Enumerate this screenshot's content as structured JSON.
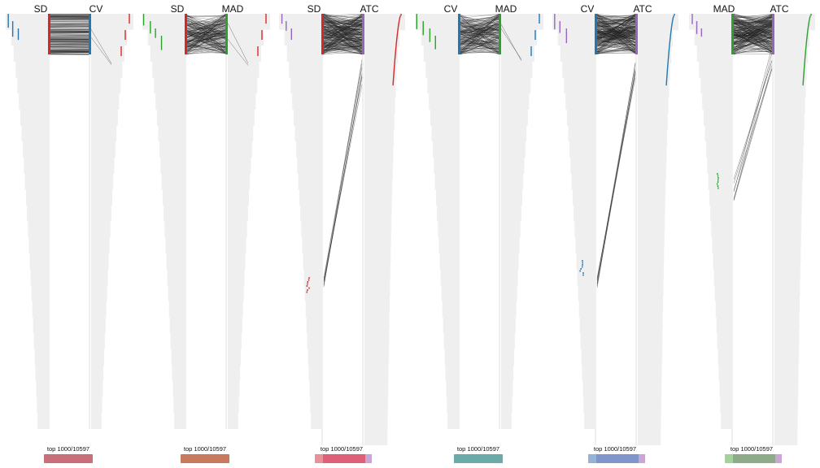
{
  "chart_data": {
    "type": "parallel-rank-comparison",
    "total_genes": 10597,
    "top_n": 1000,
    "footer_label": "top 1000/10597",
    "method_colors": {
      "SD": "#d62728",
      "CV": "#1f77b4",
      "MAD": "#2ca02c",
      "ATC": "#9467bd"
    },
    "background_color": "#efefef",
    "line_color": "#222222",
    "panels": [
      {
        "left": "SD",
        "right": "CV",
        "overlap_pct": 1.0,
        "footer_colors": [
          "#c86f7a"
        ]
      },
      {
        "left": "SD",
        "right": "MAD",
        "overlap_pct": 0.99,
        "footer_colors": [
          "#c77a5e"
        ]
      },
      {
        "left": "SD",
        "right": "ATC",
        "overlap_pct": 0.75,
        "footer_colors": [
          "#e8919a",
          "#de5f78",
          "#c9a6d3"
        ]
      },
      {
        "left": "CV",
        "right": "MAD",
        "overlap_pct": 0.99,
        "footer_colors": [
          "#6aaaa8"
        ]
      },
      {
        "left": "CV",
        "right": "ATC",
        "overlap_pct": 0.75,
        "footer_colors": [
          "#94b3d6",
          "#8095cb",
          "#c9a6d3"
        ]
      },
      {
        "left": "MAD",
        "right": "ATC",
        "overlap_pct": 0.75,
        "footer_colors": [
          "#a3d29b",
          "#8eab89",
          "#c9a6d3"
        ]
      }
    ]
  }
}
